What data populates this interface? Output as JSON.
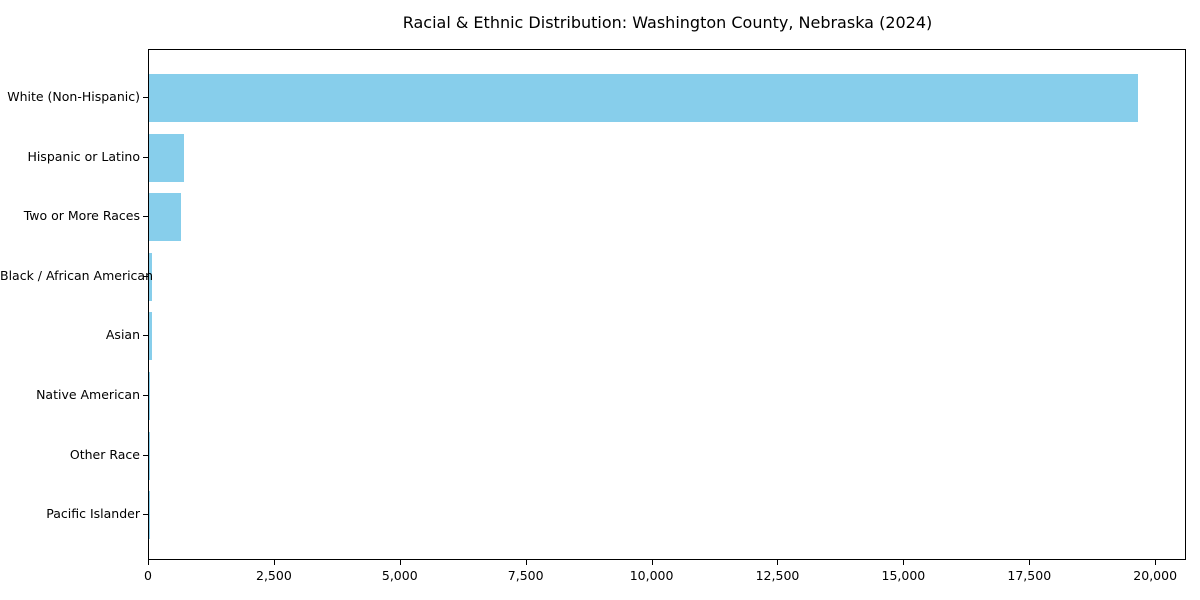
{
  "figure": {
    "background": "#ffffff",
    "frame_color": "#000000",
    "text_color": "#000000"
  },
  "chart_data": {
    "type": "bar",
    "orientation": "horizontal",
    "title": "Racial & Ethnic Distribution: Washington County, Nebraska (2024)",
    "xlabel": "",
    "ylabel": "",
    "categories": [
      "White (Non-Hispanic)",
      "Hispanic or Latino",
      "Two or More Races",
      "Black / African American",
      "Asian",
      "Native American",
      "Other Race",
      "Pacific Islander"
    ],
    "values": [
      19630,
      690,
      640,
      65,
      55,
      25,
      10,
      4
    ],
    "xlim": [
      0,
      20612
    ],
    "xticks": [
      0,
      2500,
      5000,
      7500,
      10000,
      12500,
      15000,
      17500,
      20000
    ],
    "xtick_labels": [
      "0",
      "2,500",
      "5,000",
      "7,500",
      "10,000",
      "12,500",
      "15,000",
      "17,500",
      "20,000"
    ],
    "bar_color": "#87CEEB",
    "grid": false,
    "legend_position": "none"
  }
}
